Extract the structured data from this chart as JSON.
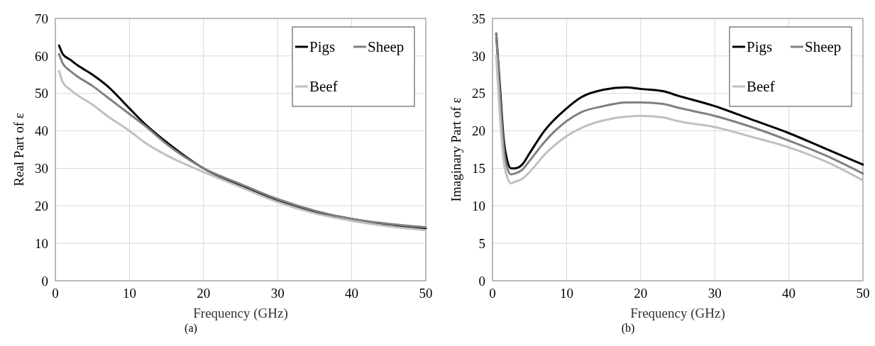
{
  "chart_data": [
    {
      "type": "line",
      "xlabel": "Frequency (GHz)",
      "ylabel": "Real Part of ε",
      "annotations": [
        "(a)"
      ],
      "xlim": [
        0,
        50
      ],
      "xticks": [
        0,
        10,
        20,
        30,
        40,
        50
      ],
      "ylim": [
        0,
        70
      ],
      "yticks": [
        0,
        10,
        20,
        30,
        40,
        50,
        60,
        70
      ],
      "grid": true,
      "legend": "top right",
      "line_style": "solid",
      "marker": "none",
      "series": [
        {
          "name": "Pigs",
          "color": "#000000",
          "x": [
            0.5,
            1,
            2,
            3,
            5,
            7,
            10,
            12,
            15,
            20,
            25,
            30,
            35,
            40,
            45,
            50
          ],
          "values": [
            62.8,
            60.5,
            59,
            57.5,
            55,
            52,
            46,
            42,
            37,
            30,
            25.5,
            21.5,
            18.5,
            16.5,
            15,
            14
          ]
        },
        {
          "name": "Sheep",
          "color": "#808080",
          "x": [
            0.5,
            1,
            2,
            3,
            5,
            7,
            10,
            12,
            15,
            20,
            25,
            30,
            35,
            40,
            45,
            50
          ],
          "values": [
            60.5,
            58,
            56,
            54.5,
            52,
            49,
            44.5,
            41.5,
            36.5,
            30,
            25.8,
            21.8,
            18.7,
            16.5,
            15.2,
            14.3
          ]
        },
        {
          "name": "Beef",
          "color": "#c0c0c0",
          "x": [
            0.5,
            1,
            2,
            3,
            5,
            7,
            10,
            12,
            15,
            20,
            25,
            30,
            35,
            40,
            45,
            50
          ],
          "values": [
            56,
            53,
            51,
            49.5,
            47,
            44,
            40,
            37,
            33.5,
            29,
            25,
            21,
            18,
            16,
            14.5,
            13.5
          ]
        }
      ]
    },
    {
      "type": "line",
      "xlabel": "Frequency (GHz)",
      "ylabel": "Imaginary  Part of ε",
      "annotations": [
        "(b)"
      ],
      "xlim": [
        0,
        50
      ],
      "xticks": [
        0,
        10,
        20,
        30,
        40,
        50
      ],
      "ylim": [
        0,
        35
      ],
      "yticks": [
        0,
        5,
        10,
        15,
        20,
        25,
        30,
        35
      ],
      "grid": true,
      "legend": "top right",
      "line_style": "solid",
      "marker": "none",
      "series": [
        {
          "name": "Pigs",
          "color": "#000000",
          "x": [
            0.5,
            1,
            1.5,
            2,
            2.5,
            3,
            4,
            5,
            7,
            10,
            12,
            15,
            18,
            20,
            23,
            25,
            30,
            35,
            40,
            45,
            50
          ],
          "values": [
            33,
            26,
            19,
            16,
            15,
            15,
            15.5,
            17,
            20,
            23,
            24.5,
            25.5,
            25.8,
            25.6,
            25.3,
            24.7,
            23.3,
            21.5,
            19.7,
            17.6,
            15.5
          ]
        },
        {
          "name": "Sheep",
          "color": "#808080",
          "x": [
            0.5,
            1,
            1.5,
            2,
            2.5,
            3,
            4,
            5,
            7,
            10,
            12,
            15,
            18,
            20,
            23,
            25,
            30,
            35,
            40,
            45,
            50
          ],
          "values": [
            33,
            25,
            18,
            15,
            14.2,
            14.3,
            14.8,
            16,
            18.5,
            21.3,
            22.5,
            23.3,
            23.8,
            23.8,
            23.6,
            23.1,
            22,
            20.5,
            18.7,
            16.7,
            14.3
          ]
        },
        {
          "name": "Beef",
          "color": "#c0c0c0",
          "x": [
            0.5,
            1,
            1.5,
            2,
            2.5,
            3,
            4,
            5,
            7,
            10,
            12,
            15,
            18,
            20,
            23,
            25,
            30,
            35,
            40,
            45,
            50
          ],
          "values": [
            30,
            22,
            16,
            13.8,
            13,
            13.2,
            13.6,
            14.5,
            16.8,
            19.3,
            20.4,
            21.4,
            21.9,
            22,
            21.8,
            21.3,
            20.5,
            19.2,
            17.8,
            15.9,
            13.4
          ]
        }
      ]
    }
  ]
}
